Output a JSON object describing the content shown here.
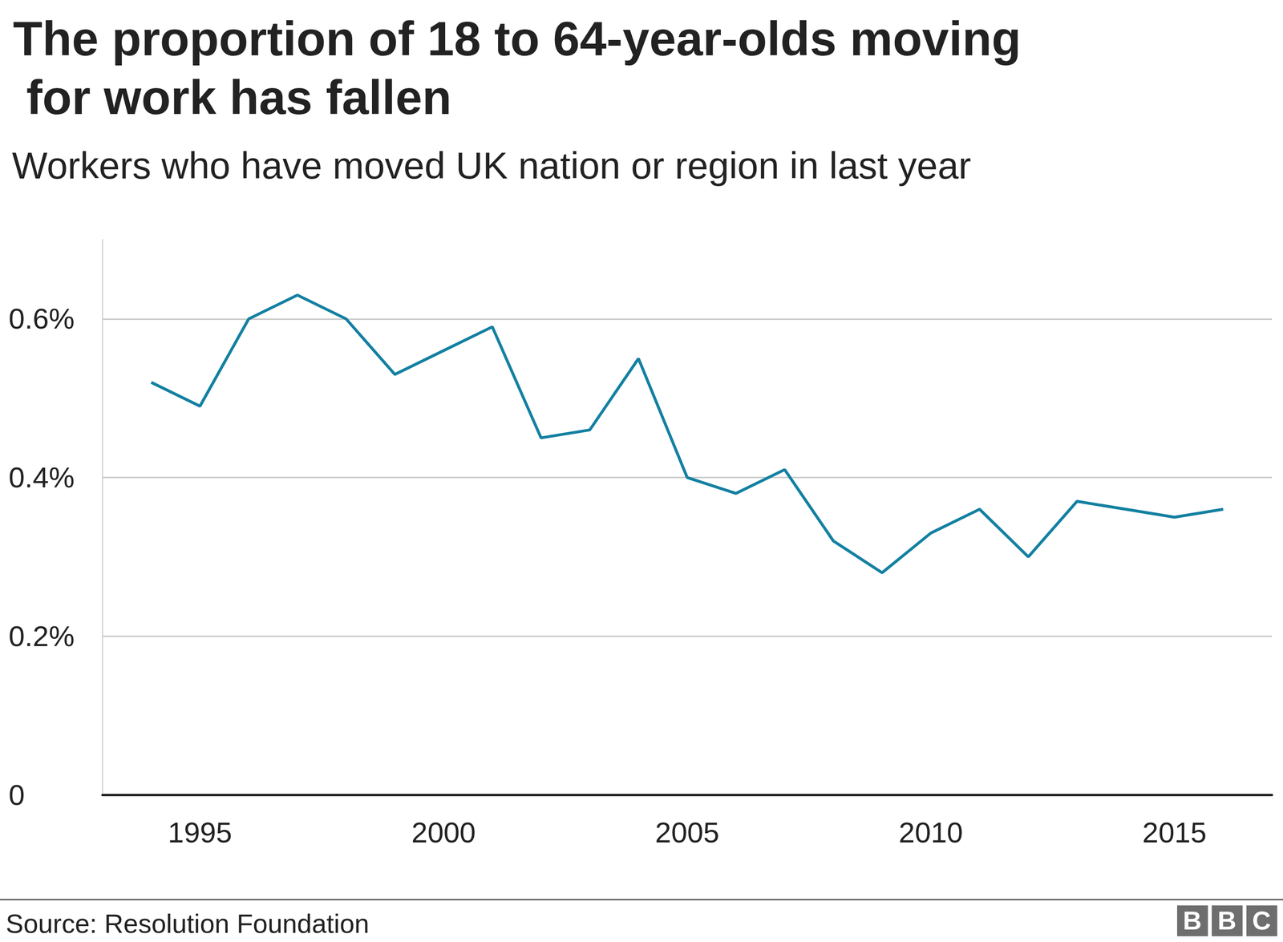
{
  "chart_data": {
    "type": "line",
    "title": "The proportion of 18 to 64-year-olds moving for work has fallen",
    "subtitle": "Workers who have moved UK nation or region in last year",
    "source": "Source: Resolution Foundation",
    "logo": "BBC",
    "x": [
      1994,
      1995,
      1996,
      1997,
      1998,
      1999,
      2000,
      2001,
      2002,
      2003,
      2004,
      2005,
      2006,
      2007,
      2008,
      2009,
      2010,
      2011,
      2012,
      2013,
      2014,
      2015,
      2016
    ],
    "values": [
      0.52,
      0.49,
      0.6,
      0.63,
      0.6,
      0.53,
      0.56,
      0.59,
      0.45,
      0.46,
      0.55,
      0.4,
      0.38,
      0.41,
      0.32,
      0.28,
      0.33,
      0.36,
      0.3,
      0.37,
      0.36,
      0.35,
      0.36
    ],
    "color": "#1380a1",
    "xlim": [
      1993,
      2017
    ],
    "xticks": [
      1995,
      2000,
      2005,
      2010,
      2015
    ],
    "ylim": [
      0,
      0.7
    ],
    "yticks": [
      {
        "value": 0,
        "label": "0"
      },
      {
        "value": 0.2,
        "label": "0.2%"
      },
      {
        "value": 0.4,
        "label": "0.4%"
      },
      {
        "value": 0.6,
        "label": "0.6%"
      }
    ],
    "grid": true
  }
}
